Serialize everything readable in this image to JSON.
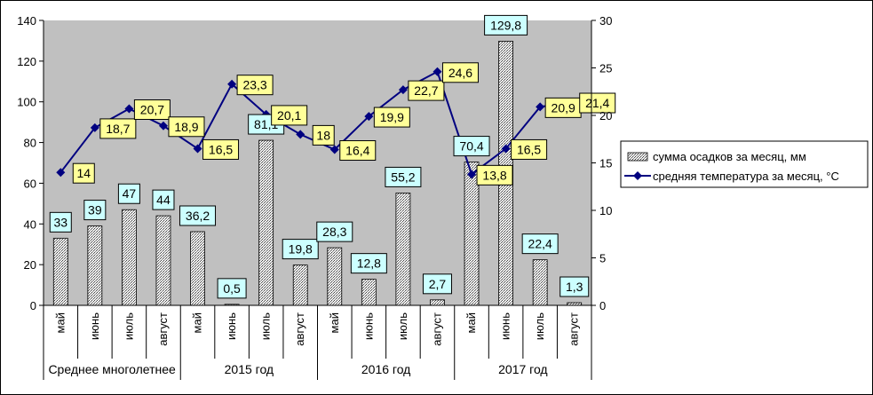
{
  "chart_data": {
    "type": "bar+line",
    "categories": [
      "май",
      "июнь",
      "июль",
      "август",
      "май",
      "июнь",
      "июль",
      "август",
      "май",
      "июнь",
      "июль",
      "август",
      "май",
      "июнь",
      "июль",
      "август"
    ],
    "groups": [
      {
        "label": "Среднее многолетнее",
        "from": 0,
        "to": 3
      },
      {
        "label": "2015 год",
        "from": 4,
        "to": 7
      },
      {
        "label": "2016 год",
        "from": 8,
        "to": 11
      },
      {
        "label": "2017 год",
        "from": 12,
        "to": 15
      }
    ],
    "series": [
      {
        "name": "сумма осадков за месяц, мм",
        "type": "bar",
        "axis": "left",
        "values": [
          33,
          39,
          47,
          44,
          36.2,
          0.5,
          81.1,
          19.8,
          28.3,
          12.8,
          55.2,
          2.7,
          70.4,
          129.8,
          22.4,
          1.3
        ],
        "labels": [
          "33",
          "39",
          "47",
          "44",
          "36,2",
          "0,5",
          "81,1",
          "19,8",
          "28,3",
          "12,8",
          "55,2",
          "2,7",
          "70,4",
          "129,8",
          "22,4",
          "1,3"
        ]
      },
      {
        "name": "средняя температура за месяц, °С",
        "type": "line",
        "axis": "right",
        "values": [
          14,
          18.7,
          20.7,
          18.9,
          16.5,
          23.3,
          20.1,
          18,
          16.4,
          19.9,
          22.7,
          24.6,
          13.8,
          16.5,
          20.9,
          21.4
        ],
        "labels": [
          "14",
          "18,7",
          "20,7",
          "18,9",
          "16,5",
          "23,3",
          "20,1",
          "18",
          "16,4",
          "19,9",
          "22,7",
          "24,6",
          "13,8",
          "16,5",
          "20,9",
          "21,4"
        ]
      }
    ],
    "y_left": {
      "min": 0,
      "max": 140,
      "ticks": [
        0,
        20,
        40,
        60,
        80,
        100,
        120,
        140
      ]
    },
    "y_right": {
      "min": 0,
      "max": 30,
      "ticks": [
        0,
        5,
        10,
        15,
        20,
        25,
        30
      ]
    },
    "grid": false,
    "legend_position": "right",
    "colors": {
      "plot_bg": "#c0c0c0",
      "line": "#000080",
      "bar_label_bg": "#ccffff",
      "line_label_bg": "#ffff99"
    }
  }
}
